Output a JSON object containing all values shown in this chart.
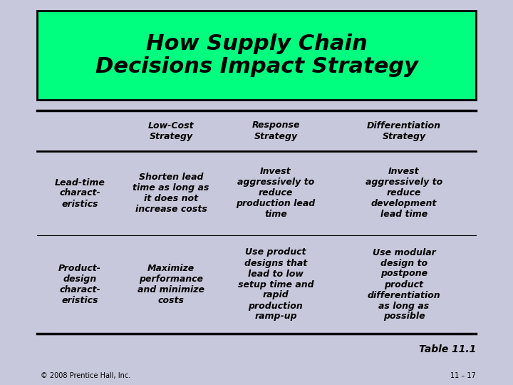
{
  "title_line1": "How Supply Chain",
  "title_line2": "Decisions Impact Strategy",
  "title_bg": "#00FF7F",
  "title_border": "#000000",
  "bg_color": "#C8C8DC",
  "table_bg": "#E8E8F0",
  "col_headers": [
    "",
    "Low-Cost\nStrategy",
    "Response\nStrategy",
    "Differentiation\nStrategy"
  ],
  "row1_label": "Lead-time\ncharact-\neristics",
  "row1_col1": "Shorten lead\ntime as long as\nit does not\nincrease costs",
  "row1_col2": "Invest\naggressively to\nreduce\nproduction lead\ntime",
  "row1_col3": "Invest\naggressively to\nreduce\ndevelopment\nlead time",
  "row2_label": "Product-\ndesign\ncharact-\neristics",
  "row2_col1": "Maximize\nperformance\nand minimize\ncosts",
  "row2_col2": "Use product\ndesigns that\nlead to low\nsetup time and\nrapid\nproduction\nramp-up",
  "row2_col3": "Use modular\ndesign to\npostpone\nproduct\ndifferentiation\nas long as\npossible",
  "footer_left": "© 2008 Prentice Hall, Inc.",
  "footer_right": "11 – 17",
  "table_label": "Table 11.1",
  "line_color": "#000000",
  "text_color": "#000000",
  "title_fontsize": 22,
  "header_fontsize": 9,
  "body_fontsize": 9
}
